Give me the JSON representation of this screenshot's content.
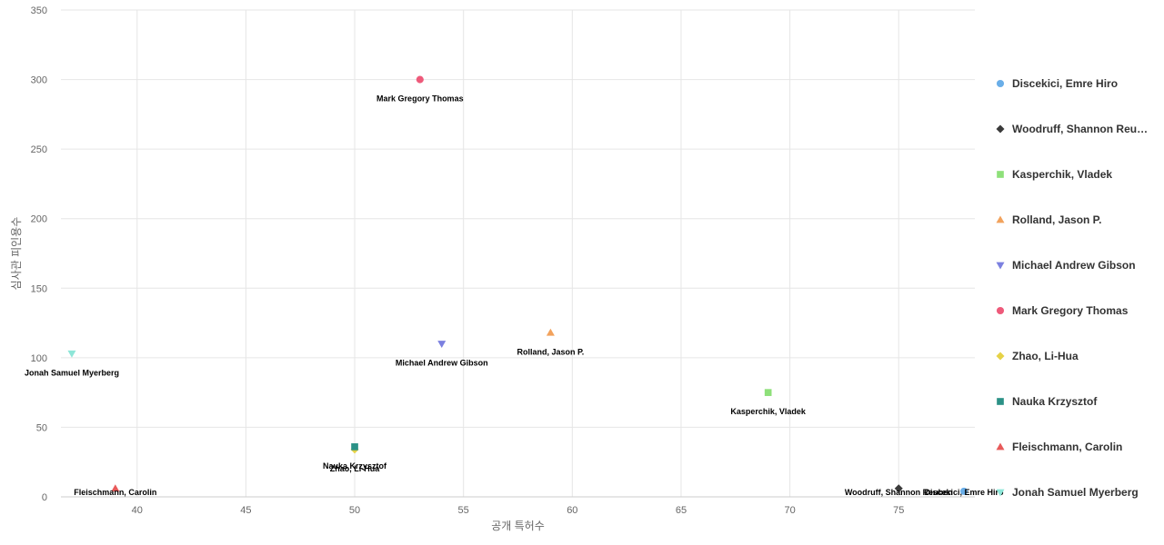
{
  "chart_data": {
    "type": "scatter",
    "xlabel": "공개 특허수",
    "ylabel": "심사관 피인용수",
    "xlim": [
      36.5,
      78.5
    ],
    "ylim": [
      0,
      350
    ],
    "x_ticks": [
      40,
      45,
      50,
      55,
      60,
      65,
      70,
      75
    ],
    "y_ticks": [
      0,
      50,
      100,
      150,
      200,
      250,
      300,
      350
    ],
    "grid": true,
    "legend_position": "right",
    "series": [
      {
        "name": "Discekici, Emre Hiro",
        "marker": "circle",
        "color": "#6aaee8",
        "x": 78,
        "y": 4,
        "label": "Discekici, Emre Hiro"
      },
      {
        "name": "Woodruff, Shannon Reu…",
        "marker": "diamond",
        "color": "#3a3a3a",
        "x": 75,
        "y": 6,
        "label": "Woodruff, Shannon Reuben"
      },
      {
        "name": "Kasperchik, Vladek",
        "marker": "square",
        "color": "#8ee07a",
        "x": 69,
        "y": 75,
        "label": "Kasperchik, Vladek"
      },
      {
        "name": "Rolland, Jason P.",
        "marker": "triangle-up",
        "color": "#f2a25c",
        "x": 59,
        "y": 118,
        "label": "Rolland, Jason P."
      },
      {
        "name": "Michael Andrew Gibson",
        "marker": "triangle-down",
        "color": "#7b80e0",
        "x": 54,
        "y": 110,
        "label": "Michael Andrew Gibson"
      },
      {
        "name": "Mark Gregory Thomas",
        "marker": "circle",
        "color": "#ee5a7a",
        "x": 53,
        "y": 300,
        "label": "Mark Gregory Thomas"
      },
      {
        "name": "Zhao, Li-Hua",
        "marker": "diamond",
        "color": "#e6d247",
        "x": 50,
        "y": 34,
        "label": "Zhao, Li-Hua"
      },
      {
        "name": "Nauka Krzysztof",
        "marker": "square",
        "color": "#2b9186",
        "x": 50,
        "y": 36,
        "label": "Nauka Krzysztof"
      },
      {
        "name": "Fleischmann, Carolin",
        "marker": "triangle-up",
        "color": "#e85a5a",
        "x": 39,
        "y": 6,
        "label": "Fleischmann, Carolin"
      },
      {
        "name": "Jonah Samuel Myerberg",
        "marker": "triangle-down",
        "color": "#8ee6d8",
        "x": 37,
        "y": 103,
        "label": "Jonah Samuel Myerberg"
      }
    ]
  }
}
